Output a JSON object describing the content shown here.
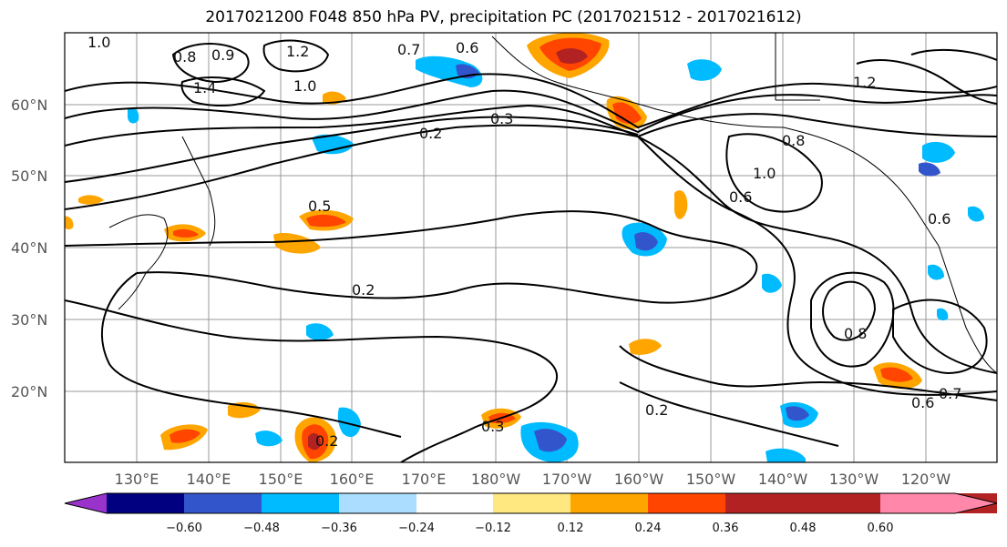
{
  "title": "2017021200 F048 850 hPa PV, precipitation PC (2017021512 - 2017021612)",
  "map": {
    "lat_labels": [
      "60°N",
      "50°N",
      "40°N",
      "30°N",
      "20°N"
    ],
    "lon_labels": [
      "130°E",
      "140°E",
      "150°E",
      "160°E",
      "170°E",
      "180°W",
      "170°W",
      "160°W",
      "150°W",
      "140°W",
      "130°W",
      "120°W"
    ],
    "contour_labels": [
      "1.0",
      "0.8",
      "0.9",
      "1.2",
      "0.7",
      "0.6",
      "1.4",
      "1.0",
      "0.3",
      "0.2",
      "0.5",
      "0.2",
      "0.2",
      "0.3",
      "0.2",
      "0.6",
      "0.8",
      "1.0",
      "0.6",
      "0.7",
      "0.6",
      "0.8",
      "1.2"
    ]
  },
  "colorbar": {
    "ticks": [
      "−0.60",
      "−0.48",
      "−0.36",
      "−0.24",
      "−0.12",
      "0.12",
      "0.24",
      "0.36",
      "0.48",
      "0.60"
    ],
    "colors": [
      "#9933cc",
      "#000080",
      "#3355cc",
      "#00bbff",
      "#aaddff",
      "#ffffff",
      "#ffe880",
      "#ffa500",
      "#ff4500",
      "#b22222",
      "#ff88aa"
    ]
  }
}
